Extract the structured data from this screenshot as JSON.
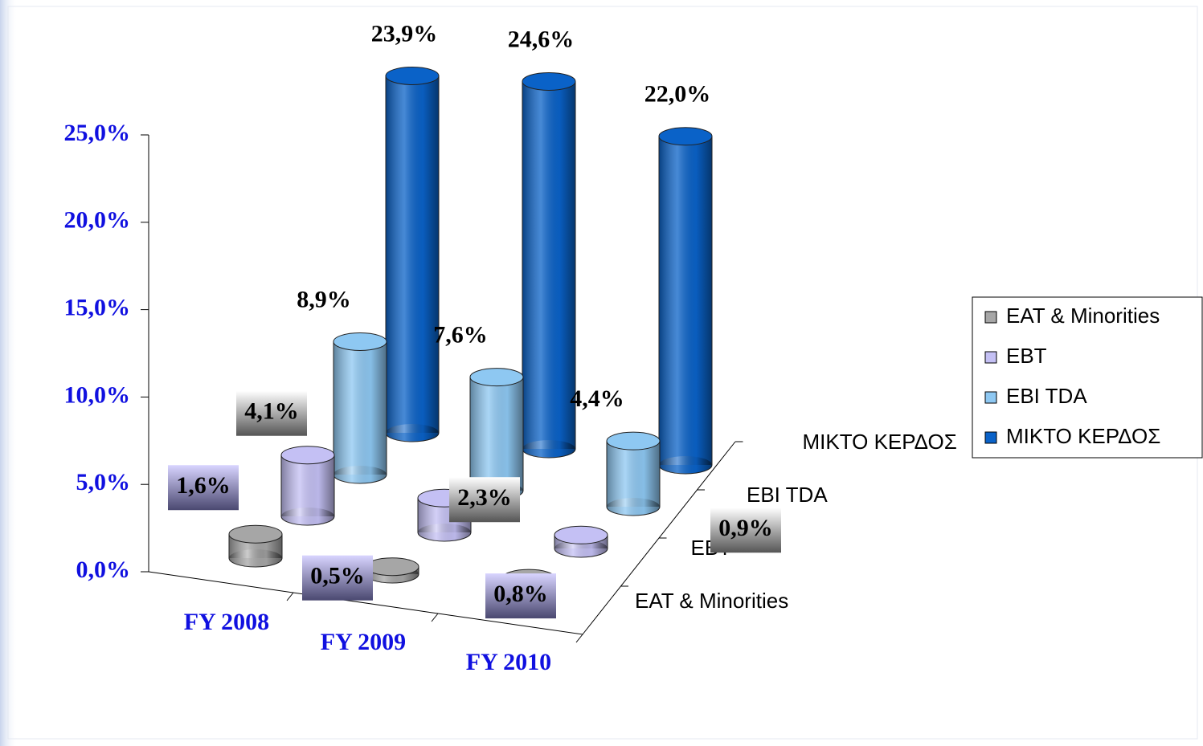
{
  "chart_data": {
    "type": "bar3d",
    "categories": [
      "FY 2008",
      "FY 2009",
      "FY 2010"
    ],
    "series": [
      {
        "name": "EAT & Minorities",
        "color": "#a6a6a6",
        "values": [
          1.6,
          0.5,
          0.8
        ],
        "value_labels": [
          "1,6%",
          "0,5%",
          "0,8%"
        ]
      },
      {
        "name": "EBT",
        "color": "#c4c0f4",
        "values": [
          4.1,
          2.3,
          0.9
        ],
        "value_labels": [
          "4,1%",
          "2,3%",
          "0,9%"
        ]
      },
      {
        "name": "EBI TDA",
        "color": "#8ec8f2",
        "values": [
          8.9,
          7.6,
          4.4
        ],
        "value_labels": [
          "8,9%",
          "7,6%",
          "4,4%"
        ]
      },
      {
        "name": "ΜΙΚΤΟ ΚΕΡΔΟΣ",
        "color": "#0a62c8",
        "values": [
          23.9,
          24.6,
          22.0
        ],
        "value_labels": [
          "23,9%",
          "24,6%",
          "22,0%"
        ]
      }
    ],
    "ylim": [
      0,
      25
    ],
    "yticks": [
      {
        "value": 0,
        "label": "0,0%"
      },
      {
        "value": 5,
        "label": "5,0%"
      },
      {
        "value": 10,
        "label": "10,0%"
      },
      {
        "value": 15,
        "label": "15,0%"
      },
      {
        "value": 20,
        "label": "20,0%"
      },
      {
        "value": 25,
        "label": "25,0%"
      }
    ],
    "legend": "right"
  }
}
